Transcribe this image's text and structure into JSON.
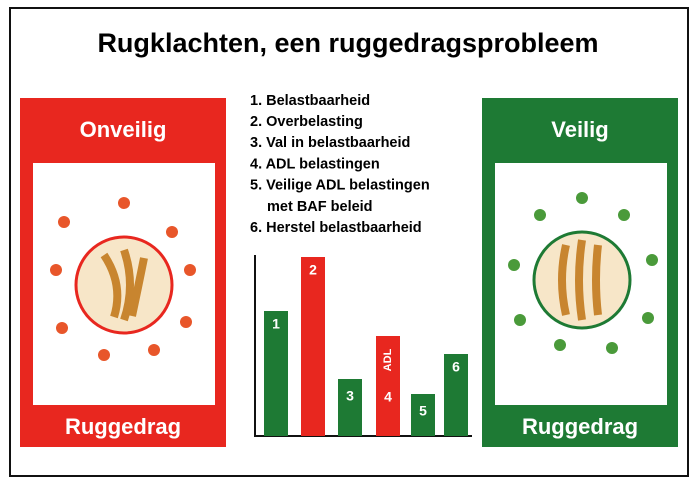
{
  "title": "Rugklachten, een ruggedragsprobleem",
  "left_panel": {
    "heading": "Onveilig",
    "footer": "Ruggedrag"
  },
  "right_panel": {
    "heading": "Veilig",
    "footer": "Ruggedrag"
  },
  "list": [
    "1. Belastbaarheid",
    "2. Overbelasting",
    "3. Val in belastbaarheid",
    "4. ADL belastingen",
    "5. Veilige ADL belastingen",
    "met BAF beleid",
    "6. Herstel belastbaarheid"
  ],
  "chart_data": {
    "type": "bar",
    "categories": [
      "1",
      "2",
      "3",
      "4",
      "5",
      "6"
    ],
    "values": [
      125,
      179,
      57,
      100,
      42,
      82
    ],
    "colors": [
      "#1e7a34",
      "#e8271f",
      "#1e7a34",
      "#e8271f",
      "#1e7a34",
      "#1e7a34"
    ],
    "annotation": "ADL",
    "ylim": [
      0,
      180
    ]
  }
}
